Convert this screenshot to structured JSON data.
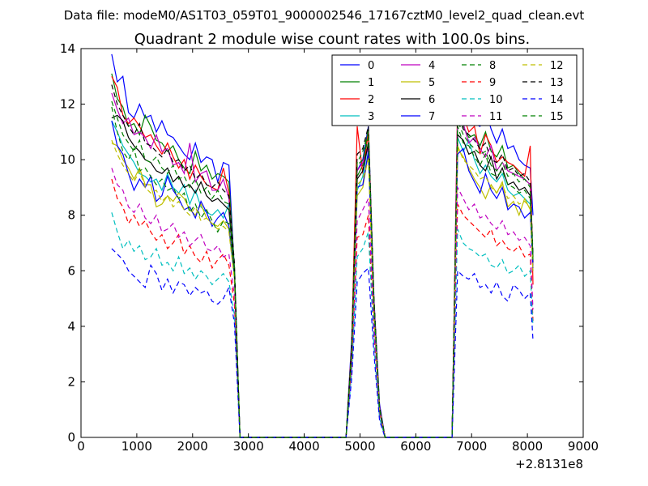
{
  "chart_data": {
    "type": "line",
    "suptitle": "Data file: modeM0/AS1T03_059T01_9000002546_17167cztM0_level2_quad_clean.evt",
    "title": "Quadrant 2 module wise count rates with 100.0s bins.",
    "xlabel": "",
    "ylabel": "",
    "x_offset_label": "+2.8131e8",
    "xlim": [
      0,
      9000
    ],
    "ylim": [
      0,
      14
    ],
    "xticks": [
      0,
      1000,
      2000,
      3000,
      4000,
      5000,
      6000,
      7000,
      8000,
      9000
    ],
    "yticks": [
      0,
      2,
      4,
      6,
      8,
      10,
      12,
      14
    ],
    "grid": false,
    "legend": {
      "placement": "top-right",
      "columns": 4
    },
    "x": [
      550,
      650,
      750,
      850,
      950,
      1050,
      1150,
      1250,
      1350,
      1450,
      1550,
      1650,
      1750,
      1850,
      1950,
      2050,
      2150,
      2250,
      2350,
      2450,
      2550,
      2650,
      2750,
      2850,
      2950,
      3050,
      4750,
      4850,
      4950,
      5050,
      5150,
      5250,
      5350,
      5450,
      5550,
      5650,
      5750,
      6650,
      6750,
      6850,
      6950,
      7050,
      7150,
      7250,
      7350,
      7450,
      7550,
      7650,
      7750,
      7850,
      7950,
      8050,
      8100
    ],
    "series": [
      {
        "name": "0",
        "color": "#0000ff",
        "dash": "solid",
        "values": [
          13.8,
          12.8,
          13.0,
          11.7,
          11.5,
          12.0,
          11.5,
          11.6,
          11.0,
          11.4,
          10.9,
          10.8,
          10.5,
          10.2,
          10.0,
          10.6,
          9.9,
          10.1,
          10.0,
          9.2,
          9.9,
          9.8,
          6.0,
          0,
          0,
          0,
          0,
          3.5,
          9.6,
          10.0,
          11.2,
          5.0,
          1.2,
          0,
          0,
          0,
          0,
          0,
          11.8,
          11.4,
          12.5,
          11.3,
          11.2,
          11.8,
          11.1,
          10.6,
          11.1,
          10.4,
          10.5,
          10.0,
          9.8,
          9.7,
          8.0
        ]
      },
      {
        "name": "1",
        "color": "#008000",
        "dash": "solid",
        "values": [
          13.1,
          12.2,
          11.9,
          11.2,
          11.3,
          10.9,
          11.6,
          11.2,
          10.7,
          10.6,
          10.3,
          10.5,
          10.0,
          9.7,
          9.5,
          10.3,
          9.6,
          9.8,
          9.3,
          9.5,
          9.4,
          9.2,
          6.1,
          0,
          0,
          0,
          0,
          3.2,
          9.4,
          9.8,
          11.1,
          4.8,
          1.1,
          0,
          0,
          0,
          0,
          0,
          11.5,
          11.2,
          10.8,
          10.9,
          10.5,
          11.0,
          10.3,
          10.1,
          10.5,
          9.7,
          9.8,
          9.5,
          9.3,
          9.1,
          6.5
        ]
      },
      {
        "name": "2",
        "color": "#ff0000",
        "dash": "solid",
        "values": [
          13.0,
          12.6,
          11.6,
          11.3,
          11.5,
          11.2,
          10.8,
          10.9,
          10.5,
          10.2,
          10.6,
          10.1,
          9.7,
          10.0,
          9.3,
          9.8,
          9.4,
          9.1,
          9.0,
          8.9,
          9.7,
          8.8,
          5.9,
          0,
          0,
          0,
          0,
          3.3,
          11.2,
          9.5,
          11.0,
          4.9,
          1.0,
          0,
          0,
          0,
          0,
          0,
          12.2,
          11.6,
          11.0,
          11.2,
          10.2,
          10.9,
          10.5,
          9.9,
          10.1,
          9.9,
          9.8,
          9.6,
          9.4,
          10.5,
          5.5
        ]
      },
      {
        "name": "3",
        "color": "#00bfbf",
        "dash": "solid",
        "values": [
          11.4,
          11.0,
          10.5,
          10.2,
          9.9,
          9.5,
          9.4,
          9.2,
          9.3,
          8.9,
          9.5,
          9.0,
          8.8,
          9.1,
          8.4,
          8.9,
          8.3,
          8.1,
          8.0,
          8.2,
          7.9,
          8.4,
          6.0,
          0,
          0,
          0,
          0,
          3.1,
          8.9,
          9.4,
          10.6,
          4.7,
          1.0,
          0,
          0,
          0,
          0,
          0,
          10.8,
          10.3,
          10.7,
          10.0,
          9.5,
          9.8,
          9.4,
          9.2,
          9.5,
          8.9,
          8.7,
          8.8,
          8.6,
          8.4,
          6.0
        ]
      },
      {
        "name": "4",
        "color": "#bf00bf",
        "dash": "solid",
        "values": [
          12.4,
          11.8,
          11.3,
          11.5,
          10.9,
          11.0,
          10.8,
          10.4,
          10.9,
          10.3,
          10.4,
          9.8,
          9.9,
          9.5,
          10.6,
          9.2,
          9.5,
          9.6,
          8.9,
          8.9,
          9.3,
          8.6,
          6.0,
          0,
          0,
          0,
          0,
          3.0,
          9.6,
          9.9,
          10.4,
          4.8,
          1.1,
          0,
          0,
          0,
          0,
          0,
          11.9,
          11.3,
          10.6,
          10.8,
          10.4,
          10.1,
          10.5,
          9.6,
          9.9,
          9.6,
          9.5,
          9.4,
          9.3,
          9.1,
          6.2
        ]
      },
      {
        "name": "5",
        "color": "#bfbf00",
        "dash": "solid",
        "values": [
          10.6,
          10.5,
          10.0,
          9.7,
          9.3,
          9.7,
          9.1,
          9.1,
          8.3,
          8.4,
          8.7,
          8.5,
          8.8,
          8.6,
          8.2,
          8.0,
          8.4,
          7.9,
          7.7,
          7.6,
          7.8,
          7.5,
          5.8,
          0,
          0,
          0,
          0,
          2.9,
          8.7,
          9.0,
          10.2,
          4.4,
          0.9,
          0,
          0,
          0,
          0,
          0,
          10.4,
          10.1,
          9.7,
          9.3,
          9.0,
          8.6,
          9.1,
          8.8,
          9.2,
          8.3,
          8.5,
          8.0,
          8.6,
          8.2,
          6.0
        ]
      },
      {
        "name": "6",
        "color": "#000000",
        "dash": "solid",
        "values": [
          11.5,
          11.6,
          11.4,
          10.8,
          10.5,
          10.3,
          10.0,
          9.9,
          9.6,
          9.5,
          9.7,
          9.2,
          9.4,
          9.0,
          9.1,
          8.8,
          9.2,
          8.7,
          8.5,
          8.6,
          8.4,
          8.2,
          6.0,
          0,
          0,
          0,
          0,
          3.1,
          9.3,
          9.6,
          10.6,
          4.6,
          1.0,
          0,
          0,
          0,
          0,
          0,
          10.9,
          10.7,
          10.2,
          10.3,
          9.8,
          9.6,
          10.1,
          9.3,
          9.7,
          9.1,
          9.2,
          8.9,
          9.0,
          8.7,
          6.3
        ]
      },
      {
        "name": "7",
        "color": "#0000ff",
        "dash": "solid",
        "values": [
          11.4,
          10.5,
          10.2,
          9.5,
          8.9,
          9.3,
          9.0,
          9.4,
          8.5,
          8.7,
          9.4,
          8.9,
          8.6,
          8.2,
          8.3,
          7.9,
          8.5,
          8.1,
          7.6,
          7.9,
          8.1,
          7.6,
          5.8,
          0,
          0,
          0,
          0,
          2.8,
          9.0,
          9.1,
          10.3,
          4.3,
          0.9,
          0,
          0,
          0,
          0,
          0,
          10.2,
          10.4,
          9.6,
          9.2,
          8.8,
          9.5,
          8.9,
          8.6,
          9.0,
          8.2,
          8.4,
          8.3,
          7.9,
          8.1,
          6.1
        ]
      },
      {
        "name": "8",
        "color": "#008000",
        "dash": "dashed",
        "values": [
          11.9,
          11.0,
          10.3,
          10.0,
          10.4,
          9.6,
          9.7,
          9.4,
          9.1,
          9.3,
          8.9,
          9.0,
          8.6,
          8.8,
          8.1,
          8.4,
          7.9,
          8.2,
          7.8,
          7.4,
          7.8,
          7.7,
          5.9,
          0,
          0,
          0,
          0,
          3.0,
          9.8,
          10.0,
          10.8,
          4.7,
          1.0,
          0,
          0,
          0,
          0,
          0,
          11.2,
          10.6,
          10.5,
          10.1,
          9.8,
          10.2,
          9.5,
          9.4,
          9.6,
          9.1,
          9.0,
          8.8,
          8.9,
          8.6,
          6.4
        ]
      },
      {
        "name": "9",
        "color": "#ff0000",
        "dash": "dashed",
        "values": [
          9.3,
          8.6,
          8.3,
          7.7,
          8.0,
          7.6,
          7.8,
          7.4,
          7.1,
          7.3,
          6.8,
          7.0,
          7.3,
          6.6,
          6.9,
          6.5,
          6.3,
          6.7,
          6.1,
          6.4,
          6.6,
          6.2,
          4.8,
          0,
          0,
          0,
          0,
          2.6,
          7.2,
          7.3,
          8.0,
          3.6,
          0.8,
          0,
          0,
          0,
          0,
          0,
          8.4,
          8.0,
          7.8,
          7.6,
          7.4,
          7.2,
          7.5,
          6.9,
          7.1,
          6.8,
          6.7,
          6.9,
          6.5,
          6.6,
          4.2
        ]
      },
      {
        "name": "10",
        "color": "#00bfbf",
        "dash": "dashed",
        "values": [
          8.1,
          7.4,
          6.8,
          7.1,
          6.7,
          6.9,
          6.4,
          6.5,
          6.8,
          6.2,
          6.3,
          6.0,
          6.5,
          5.9,
          6.1,
          5.7,
          6.0,
          5.8,
          5.5,
          5.7,
          5.9,
          5.6,
          4.4,
          0,
          0,
          0,
          0,
          2.3,
          6.5,
          6.8,
          7.4,
          3.3,
          0.7,
          0,
          0,
          0,
          0,
          0,
          7.5,
          7.0,
          6.8,
          6.7,
          6.5,
          6.6,
          6.2,
          6.1,
          6.4,
          5.9,
          6.0,
          6.2,
          5.8,
          6.0,
          4.0
        ]
      },
      {
        "name": "11",
        "color": "#bf00bf",
        "dash": "dashed",
        "values": [
          9.7,
          9.1,
          8.9,
          8.3,
          8.1,
          8.4,
          7.9,
          7.7,
          8.0,
          7.4,
          7.5,
          7.7,
          7.2,
          7.4,
          6.9,
          7.1,
          7.3,
          6.8,
          6.7,
          6.9,
          6.5,
          6.6,
          5.1,
          0,
          0,
          0,
          0,
          2.7,
          7.8,
          8.2,
          8.6,
          3.9,
          0.9,
          0,
          0,
          0,
          0,
          0,
          9.0,
          8.6,
          8.2,
          8.4,
          7.9,
          8.0,
          7.7,
          7.5,
          7.8,
          7.3,
          7.4,
          7.1,
          7.2,
          6.9,
          4.6
        ]
      },
      {
        "name": "12",
        "color": "#bfbf00",
        "dash": "dashed",
        "values": [
          10.7,
          10.2,
          9.8,
          9.5,
          9.2,
          9.6,
          9.0,
          8.8,
          8.9,
          8.5,
          8.7,
          8.3,
          8.5,
          8.2,
          8.0,
          8.3,
          7.8,
          7.9,
          7.7,
          7.5,
          7.6,
          7.4,
          5.7,
          0,
          0,
          0,
          0,
          2.9,
          9.1,
          9.3,
          10.0,
          4.4,
          1.0,
          0,
          0,
          0,
          0,
          0,
          10.5,
          10.0,
          9.8,
          9.6,
          9.3,
          9.4,
          9.0,
          8.8,
          9.1,
          8.6,
          8.7,
          8.4,
          8.5,
          8.3,
          6.0
        ]
      },
      {
        "name": "13",
        "color": "#000000",
        "dash": "dashed",
        "values": [
          12.7,
          12.0,
          11.6,
          11.2,
          10.9,
          11.3,
          10.6,
          10.5,
          10.3,
          10.1,
          10.4,
          9.9,
          10.0,
          9.6,
          9.8,
          9.3,
          9.5,
          9.1,
          9.0,
          9.2,
          8.9,
          8.7,
          6.3,
          0,
          0,
          0,
          0,
          3.2,
          10.2,
          10.4,
          11.2,
          5.0,
          1.1,
          0,
          0,
          0,
          0,
          0,
          11.6,
          11.1,
          10.9,
          10.7,
          10.4,
          10.6,
          10.0,
          9.9,
          10.2,
          9.6,
          9.7,
          9.4,
          9.5,
          9.2,
          6.6
        ]
      },
      {
        "name": "14",
        "color": "#0000ff",
        "dash": "dashed",
        "values": [
          6.8,
          6.6,
          6.4,
          6.0,
          5.8,
          5.6,
          5.4,
          6.2,
          5.9,
          5.3,
          5.7,
          5.2,
          5.6,
          5.5,
          5.1,
          5.4,
          5.2,
          5.3,
          4.9,
          4.8,
          5.0,
          5.4,
          4.1,
          0,
          0,
          0,
          0,
          2.1,
          5.6,
          5.9,
          6.1,
          3.0,
          0.6,
          0,
          0,
          0,
          0,
          0,
          6.0,
          5.8,
          5.7,
          5.9,
          5.4,
          5.5,
          5.2,
          5.6,
          5.1,
          4.9,
          5.5,
          5.3,
          5.0,
          5.2,
          3.5
        ]
      },
      {
        "name": "15",
        "color": "#008000",
        "dash": "dashed",
        "values": [
          12.1,
          11.5,
          10.9,
          10.6,
          10.3,
          10.7,
          10.0,
          9.9,
          10.1,
          9.7,
          9.5,
          9.8,
          9.3,
          9.4,
          9.0,
          9.3,
          8.8,
          9.0,
          8.6,
          8.9,
          8.5,
          8.4,
          6.1,
          0,
          0,
          0,
          0,
          3.1,
          9.9,
          10.3,
          11.0,
          4.8,
          1.0,
          0,
          0,
          0,
          0,
          0,
          11.4,
          10.9,
          10.6,
          10.4,
          10.2,
          10.3,
          9.8,
          9.6,
          9.9,
          9.4,
          9.5,
          9.2,
          9.3,
          9.0,
          6.4
        ]
      }
    ]
  }
}
